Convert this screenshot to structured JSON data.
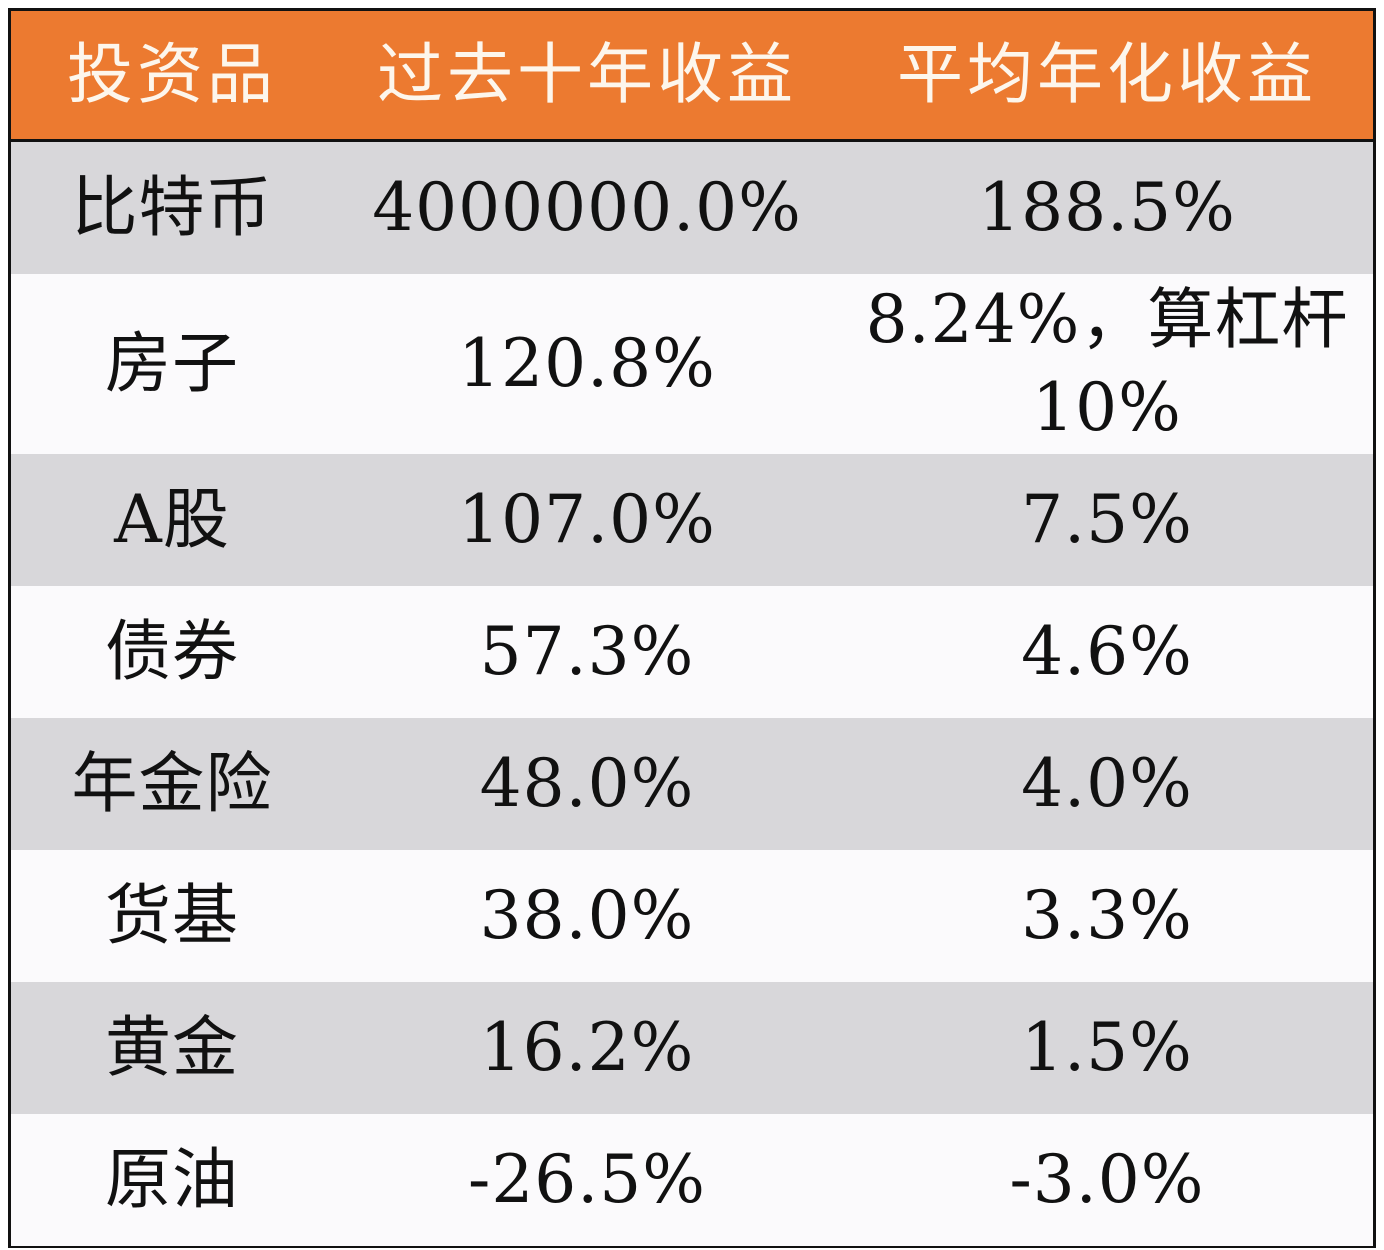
{
  "table": {
    "header": {
      "col1": "投资品",
      "col2": "过去十年收益",
      "col3": "平均年化收益"
    },
    "rows": [
      {
        "asset": "比特币",
        "ten_year_return": "4000000.0%",
        "annualized_return": "188.5%",
        "shade": "gray"
      },
      {
        "asset": "房子",
        "ten_year_return": "120.8%",
        "annualized_return": "8.24%，算杠杆10%",
        "shade": "white"
      },
      {
        "asset": "A股",
        "ten_year_return": "107.0%",
        "annualized_return": "7.5%",
        "shade": "gray"
      },
      {
        "asset": "债券",
        "ten_year_return": "57.3%",
        "annualized_return": "4.6%",
        "shade": "white"
      },
      {
        "asset": "年金险",
        "ten_year_return": "48.0%",
        "annualized_return": "4.0%",
        "shade": "gray"
      },
      {
        "asset": "货基",
        "ten_year_return": "38.0%",
        "annualized_return": "3.3%",
        "shade": "white"
      },
      {
        "asset": "黄金",
        "ten_year_return": "16.2%",
        "annualized_return": "1.5%",
        "shade": "gray"
      },
      {
        "asset": "原油",
        "ten_year_return": "-26.5%",
        "annualized_return": "-3.0%",
        "shade": "white"
      }
    ]
  },
  "colors": {
    "header_bg": "#ec7a30",
    "header_text": "#fdf6ec",
    "row_gray": "#d8d7da",
    "row_white": "#fbfafc",
    "border": "#111111",
    "text": "#111111"
  }
}
